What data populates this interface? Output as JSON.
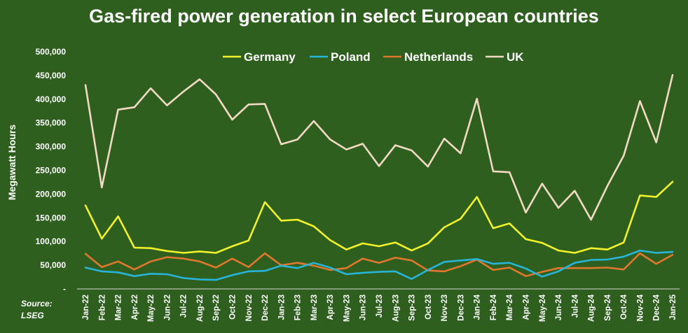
{
  "chart_data": {
    "type": "line",
    "title": "Gas-fired power generation in select European countries",
    "ylabel": "Megawatt Hours",
    "xlabel": "",
    "ylim": [
      0,
      500000
    ],
    "y_ticks": [
      "-",
      "50,000",
      "100,000",
      "150,000",
      "200,000",
      "250,000",
      "300,000",
      "350,000",
      "400,000",
      "450,000",
      "500,000"
    ],
    "grid": false,
    "legend_position": "top",
    "categories": [
      "Jan-22",
      "Feb-22",
      "Mar-22",
      "Apr-22",
      "May-22",
      "Jun-22",
      "Jul-22",
      "Aug-22",
      "Sep-22",
      "Oct-22",
      "Nov-22",
      "Dec-22",
      "Jan-23",
      "Feb-23",
      "Mar-23",
      "Apr-23",
      "May-23",
      "Jun-23",
      "Jul-23",
      "Aug-23",
      "Sep-23",
      "Oct-23",
      "Nov-23",
      "Dec-23",
      "Jan-24",
      "Feb-24",
      "Mar-24",
      "Apr-24",
      "May-24",
      "Jun-24",
      "Jul-24",
      "Aug-24",
      "Sep-24",
      "Oct-24",
      "Nov-24",
      "Dec-24",
      "Jan-25"
    ],
    "series": [
      {
        "name": "Germany",
        "color": "#f2f22a",
        "values": [
          176000,
          106000,
          153000,
          87000,
          86000,
          80000,
          76000,
          79000,
          76000,
          90000,
          102000,
          183000,
          144000,
          146000,
          132000,
          103000,
          83000,
          96000,
          90000,
          98000,
          81000,
          96000,
          130000,
          148000,
          194000,
          128000,
          138000,
          105000,
          97000,
          81000,
          76000,
          86000,
          83000,
          98000,
          197000,
          194000,
          226000
        ]
      },
      {
        "name": "Poland",
        "color": "#28b4d8",
        "values": [
          45000,
          37000,
          35000,
          27000,
          32000,
          31000,
          23000,
          20000,
          19000,
          29000,
          37000,
          38000,
          49000,
          44000,
          55000,
          45000,
          31000,
          34000,
          36000,
          37000,
          21000,
          40000,
          57000,
          60000,
          63000,
          53000,
          55000,
          43000,
          26000,
          37000,
          55000,
          61000,
          62000,
          68000,
          81000,
          76000,
          78000
        ]
      },
      {
        "name": "Netherlands",
        "color": "#e0772e",
        "values": [
          74000,
          46000,
          58000,
          41000,
          58000,
          67000,
          64000,
          58000,
          45000,
          64000,
          46000,
          75000,
          50000,
          55000,
          49000,
          40000,
          44000,
          64000,
          55000,
          66000,
          60000,
          39000,
          37000,
          48000,
          62000,
          40000,
          45000,
          27000,
          36000,
          44000,
          44000,
          44000,
          45000,
          41000,
          75000,
          53000,
          72000
        ]
      },
      {
        "name": "UK",
        "color": "#f2d9c3",
        "values": [
          430000,
          214000,
          378000,
          383000,
          423000,
          387000,
          416000,
          442000,
          410000,
          357000,
          389000,
          390000,
          305000,
          315000,
          354000,
          315000,
          294000,
          306000,
          259000,
          303000,
          292000,
          258000,
          317000,
          286000,
          401000,
          248000,
          246000,
          161000,
          222000,
          171000,
          207000,
          146000,
          217000,
          281000,
          396000,
          309000,
          451000
        ]
      }
    ]
  },
  "source": {
    "line1": "Source:",
    "line2": "LSEG"
  }
}
